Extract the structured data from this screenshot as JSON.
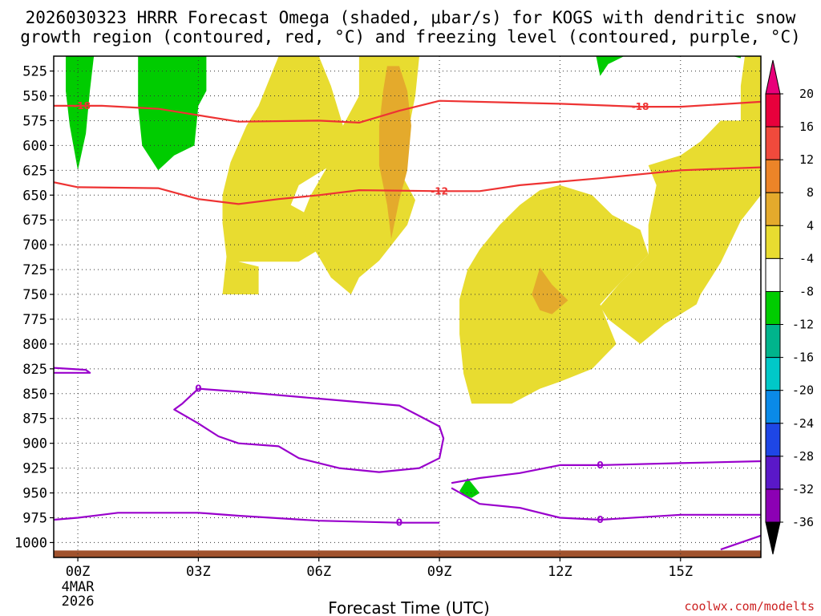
{
  "chart_data": {
    "type": "contour",
    "title_line1": "2026030323 HRRR Forecast Omega (shaded, μbar/s) for KOGS with dendritic snow",
    "title_line2": "growth region (contoured, red, °C) and freezing level (contoured, purple, °C)",
    "xlabel": "Forecast Time (UTC)",
    "credit": "coolwx.com/modelts",
    "x_ticks": [
      {
        "hour": 0,
        "label": "00Z",
        "sub1": "4MAR",
        "sub2": "2026"
      },
      {
        "hour": 3,
        "label": "03Z"
      },
      {
        "hour": 6,
        "label": "06Z"
      },
      {
        "hour": 9,
        "label": "09Z"
      },
      {
        "hour": 12,
        "label": "12Z"
      },
      {
        "hour": 15,
        "label": "15Z"
      }
    ],
    "xlim": [
      -0.6,
      17.0
    ],
    "ylim": [
      1015,
      510
    ],
    "y_ticks": [
      525,
      550,
      575,
      600,
      625,
      650,
      675,
      700,
      725,
      750,
      775,
      800,
      825,
      850,
      875,
      900,
      925,
      950,
      975,
      1000
    ],
    "colorbar": {
      "ticks": [
        "20",
        "16",
        "12",
        "8",
        "4",
        "-4",
        "-8",
        "-12",
        "-16",
        "-20",
        "-24",
        "-28",
        "-32",
        "-36"
      ],
      "colors": [
        "#e8003c",
        "#f04a3c",
        "#ec8428",
        "#e4aa2c",
        "#e8dc30",
        "#ffffff",
        "#00cc00",
        "#00b48c",
        "#00c8c8",
        "#0a8ae8",
        "#1e46e6",
        "#5a18c8",
        "#8c00b4",
        "#a0a0a0"
      ],
      "top_arrow_color": "#e8007a",
      "bottom_arrow_color": "#000000"
    },
    "contour_labels": {
      "dgz_top": "-18",
      "dgz_bottom": "-12",
      "freezing": "0"
    },
    "series": {
      "dgz_top_contour": [
        [
          -0.6,
          560
        ],
        [
          0.6,
          560
        ],
        [
          2,
          563
        ],
        [
          4,
          576
        ],
        [
          6,
          575
        ],
        [
          7,
          577
        ],
        [
          8,
          565
        ],
        [
          9,
          555
        ],
        [
          12,
          558
        ],
        [
          14,
          561
        ],
        [
          15,
          561
        ],
        [
          17,
          556
        ]
      ],
      "dgz_bottom_contour": [
        [
          -0.6,
          637
        ],
        [
          0,
          642
        ],
        [
          2,
          643
        ],
        [
          3,
          654
        ],
        [
          4,
          659
        ],
        [
          5,
          654
        ],
        [
          6,
          650
        ],
        [
          7,
          645
        ],
        [
          9,
          646
        ],
        [
          10,
          646
        ],
        [
          11,
          640
        ],
        [
          13,
          633
        ],
        [
          15,
          625
        ],
        [
          17,
          622
        ]
      ],
      "freezing_upper_contour": [
        [
          3,
          845
        ],
        [
          2.6,
          860
        ],
        [
          2.4,
          866
        ],
        [
          3.0,
          880
        ],
        [
          3.5,
          893
        ],
        [
          4.0,
          900
        ],
        [
          5.0,
          903
        ],
        [
          5.5,
          915
        ],
        [
          6.5,
          925
        ],
        [
          7.0,
          927
        ],
        [
          7.5,
          929
        ],
        [
          8.5,
          925
        ],
        [
          9.0,
          915
        ],
        [
          9.1,
          895
        ],
        [
          9.0,
          883
        ],
        [
          8.0,
          862
        ],
        [
          6.0,
          855
        ],
        [
          4.0,
          848
        ],
        [
          3.0,
          845
        ]
      ],
      "freezing_lower_contour": [
        [
          -0.6,
          977
        ],
        [
          0,
          975
        ],
        [
          1,
          970
        ],
        [
          3,
          970
        ],
        [
          4,
          973
        ],
        [
          6,
          978
        ],
        [
          8,
          980
        ],
        [
          9,
          980
        ]
      ],
      "freezing_right_upper": [
        [
          9.3,
          940
        ],
        [
          10,
          935
        ],
        [
          11,
          930
        ],
        [
          12,
          922
        ],
        [
          13,
          922
        ],
        [
          15,
          920
        ],
        [
          17,
          918
        ]
      ],
      "freezing_right_lower": [
        [
          9.3,
          945
        ],
        [
          10,
          961
        ],
        [
          11,
          965
        ],
        [
          12,
          975
        ],
        [
          13,
          977
        ],
        [
          15,
          972
        ],
        [
          17,
          972
        ]
      ],
      "freezing_small_left": [
        [
          -0.6,
          824
        ],
        [
          0.2,
          826
        ],
        [
          0.3,
          829
        ],
        [
          -0.6,
          829
        ]
      ],
      "freezing_bottom_right": [
        [
          16,
          1007
        ],
        [
          17,
          993
        ]
      ],
      "omega_positive_regions": [
        [
          [
            5.0,
            510
          ],
          [
            6.0,
            510
          ],
          [
            6.3,
            540
          ],
          [
            6.6,
            580
          ],
          [
            6.5,
            615
          ],
          [
            5.5,
            640
          ],
          [
            5.3,
            660
          ],
          [
            6.2,
            680
          ],
          [
            6.0,
            705
          ],
          [
            5.5,
            717
          ],
          [
            4.0,
            717
          ],
          [
            4.5,
            722
          ],
          [
            4.5,
            750
          ],
          [
            3.6,
            750
          ],
          [
            3.7,
            712
          ],
          [
            3.6,
            678
          ],
          [
            3.6,
            650
          ],
          [
            3.8,
            617
          ],
          [
            4.2,
            580
          ],
          [
            4.5,
            560
          ]
        ],
        [
          [
            7.0,
            510
          ],
          [
            8.5,
            510
          ],
          [
            8.4,
            550
          ],
          [
            8.2,
            590
          ],
          [
            8.0,
            625
          ],
          [
            8.4,
            655
          ],
          [
            8.2,
            680
          ],
          [
            7.5,
            716
          ],
          [
            7.0,
            733
          ],
          [
            6.8,
            750
          ],
          [
            6.3,
            733
          ],
          [
            6.0,
            712
          ],
          [
            5.5,
            680
          ],
          [
            5.8,
            650
          ],
          [
            6.3,
            615
          ],
          [
            6.6,
            580
          ],
          [
            7.0,
            550
          ]
        ],
        [
          [
            12.0,
            640
          ],
          [
            12.8,
            650
          ],
          [
            13.3,
            670
          ],
          [
            14.0,
            685
          ],
          [
            14.2,
            710
          ],
          [
            13.5,
            738
          ],
          [
            13.0,
            760
          ],
          [
            13.4,
            800
          ],
          [
            12.8,
            825
          ],
          [
            12.0,
            838
          ],
          [
            11.5,
            845
          ],
          [
            10.8,
            860
          ],
          [
            9.8,
            860
          ],
          [
            9.6,
            830
          ],
          [
            9.5,
            790
          ],
          [
            9.5,
            755
          ],
          [
            9.7,
            725
          ],
          [
            10.0,
            705
          ],
          [
            10.5,
            680
          ],
          [
            11.0,
            660
          ],
          [
            11.5,
            645
          ]
        ],
        [
          [
            16.6,
            510
          ],
          [
            17.0,
            510
          ],
          [
            17.0,
            650
          ],
          [
            16.5,
            676
          ],
          [
            16.0,
            718
          ],
          [
            15.5,
            750
          ],
          [
            15.4,
            760
          ],
          [
            14.6,
            780
          ],
          [
            14.0,
            800
          ],
          [
            13.2,
            775
          ],
          [
            13.0,
            762
          ],
          [
            13.5,
            738
          ],
          [
            14.2,
            710
          ],
          [
            14.2,
            680
          ],
          [
            14.4,
            640
          ],
          [
            14.2,
            620
          ],
          [
            15.0,
            610
          ],
          [
            15.5,
            596
          ],
          [
            16.0,
            575
          ],
          [
            16.5,
            575
          ],
          [
            16.5,
            540
          ]
        ]
      ],
      "omega_moderate_regions": [
        [
          [
            7.7,
            520
          ],
          [
            8.0,
            520
          ],
          [
            8.2,
            545
          ],
          [
            8.3,
            580
          ],
          [
            8.2,
            625
          ],
          [
            8.0,
            655
          ],
          [
            7.8,
            694
          ],
          [
            7.7,
            660
          ],
          [
            7.5,
            620
          ],
          [
            7.5,
            580
          ],
          [
            7.6,
            545
          ]
        ],
        [
          [
            11.5,
            723
          ],
          [
            11.8,
            740
          ],
          [
            12.2,
            756
          ],
          [
            11.8,
            770
          ],
          [
            11.5,
            766
          ],
          [
            11.3,
            750
          ]
        ]
      ],
      "omega_negative_regions": [
        [
          [
            -0.3,
            510
          ],
          [
            0.4,
            510
          ],
          [
            0.3,
            545
          ],
          [
            0.2,
            588
          ],
          [
            0.0,
            625
          ],
          [
            -0.2,
            580
          ],
          [
            -0.3,
            545
          ]
        ],
        [
          [
            1.5,
            510
          ],
          [
            3.2,
            510
          ],
          [
            3.2,
            545
          ],
          [
            3.0,
            560
          ],
          [
            2.9,
            600
          ],
          [
            2.4,
            610
          ],
          [
            2.0,
            625
          ],
          [
            1.6,
            600
          ],
          [
            1.5,
            560
          ]
        ],
        [
          [
            12.9,
            510
          ],
          [
            13.6,
            510
          ],
          [
            13.2,
            518
          ],
          [
            13.0,
            530
          ]
        ],
        [
          [
            16.3,
            510
          ],
          [
            16.5,
            510
          ],
          [
            16.5,
            512
          ]
        ],
        [
          [
            9.7,
            935
          ],
          [
            10.0,
            950
          ],
          [
            9.8,
            955
          ],
          [
            9.6,
            952
          ],
          [
            9.5,
            948
          ]
        ]
      ]
    }
  },
  "colors": {
    "dgz": "#ee3333",
    "freezing": "#9900cc",
    "terrain": "#a0522d",
    "grid": "#333333"
  }
}
